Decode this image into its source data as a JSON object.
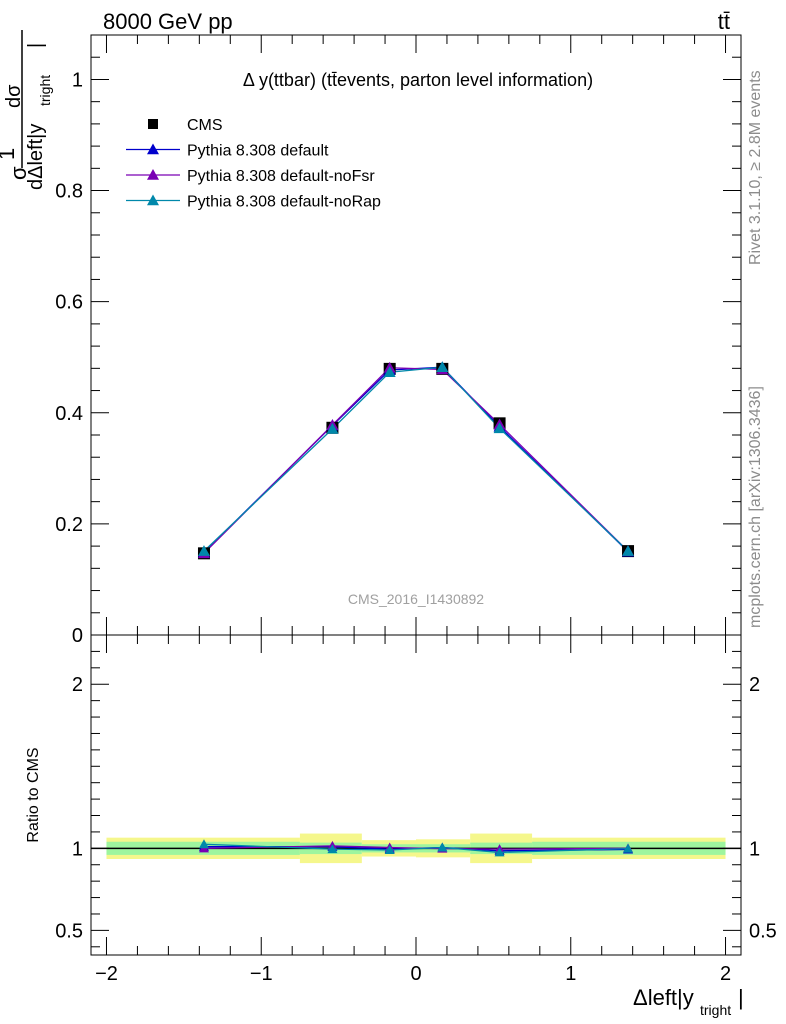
{
  "header": {
    "energy_label": "8000 GeV pp",
    "process_label": "tt̄",
    "analysis_id": "CMS_2016_I1430892",
    "rivet_label": "Rivet 3.1.10, ≥ 2.8M events",
    "mcplots_label": "mcplots.cern.ch [arXiv:1306.3436]"
  },
  "chart_data": [
    {
      "type": "scatter",
      "panel": "main",
      "title": "Δ y(ttbar) (tt̄events, parton level information)",
      "ylabel": "1/σ dσ/dΔleft|y_tright|",
      "xlim": [
        -2.1,
        2.1
      ],
      "ylim": [
        0,
        1.08
      ],
      "yticks": [
        0.2,
        0.4,
        0.6,
        0.8,
        1
      ],
      "grid": false,
      "legend_position": "top-left",
      "series": [
        {
          "name": "CMS",
          "color": "#000000",
          "marker": "square",
          "x": [
            -1.37,
            -0.54,
            -0.17,
            0.17,
            0.54,
            1.37
          ],
          "y": [
            0.147,
            0.373,
            0.479,
            0.479,
            0.381,
            0.151
          ]
        },
        {
          "name": "Pythia 8.308 default",
          "color": "#0000cc",
          "marker": "triangle",
          "x": [
            -1.37,
            -0.54,
            -0.17,
            0.17,
            0.54,
            1.37
          ],
          "y": [
            0.149,
            0.377,
            0.477,
            0.482,
            0.375,
            0.15
          ]
        },
        {
          "name": "Pythia 8.308 default-noFsr",
          "color": "#7a00b4",
          "marker": "triangle",
          "x": [
            -1.37,
            -0.54,
            -0.17,
            0.17,
            0.54,
            1.37
          ],
          "y": [
            0.147,
            0.378,
            0.481,
            0.478,
            0.379,
            0.151
          ]
        },
        {
          "name": "Pythia 8.308 default-noRap",
          "color": "#0088aa",
          "marker": "triangle",
          "x": [
            -1.37,
            -0.54,
            -0.17,
            0.17,
            0.54,
            1.37
          ],
          "y": [
            0.151,
            0.371,
            0.473,
            0.482,
            0.372,
            0.151
          ]
        }
      ]
    },
    {
      "type": "line",
      "panel": "ratio",
      "xlabel": "Δleft|y_tright|",
      "ylabel": "Ratio to CMS",
      "xlim": [
        -2.1,
        2.1
      ],
      "ylim": [
        0.35,
        2.3
      ],
      "xticks": [
        -2,
        -1,
        0,
        1,
        2
      ],
      "xtick_labels": [
        "−2",
        "−1",
        "0",
        "1",
        "2"
      ],
      "yticks": [
        0.5,
        1,
        2
      ],
      "grid": false,
      "bins": [
        -2,
        -0.75,
        -0.35,
        0,
        0.35,
        0.75,
        2
      ],
      "band_inner": [
        0.04,
        0.035,
        0.025,
        0.025,
        0.035,
        0.04
      ],
      "band_outer": [
        0.065,
        0.09,
        0.05,
        0.055,
        0.09,
        0.065
      ],
      "series": [
        {
          "name": "Pythia 8.308 default",
          "color": "#0000cc",
          "x": [
            -1.37,
            -0.54,
            -0.17,
            0.17,
            0.54,
            1.37
          ],
          "y": [
            1.01,
            1.01,
            0.995,
            1.005,
            0.985,
            0.993
          ]
        },
        {
          "name": "Pythia 8.308 default-noFsr",
          "color": "#7a00b4",
          "x": [
            -1.37,
            -0.54,
            -0.17,
            0.17,
            0.54,
            1.37
          ],
          "y": [
            1.0,
            1.015,
            1.005,
            0.998,
            0.995,
            1.0
          ]
        },
        {
          "name": "Pythia 8.308 default-noRap",
          "color": "#0088aa",
          "x": [
            -1.37,
            -0.54,
            -0.17,
            0.17,
            0.54,
            1.37
          ],
          "y": [
            1.025,
            0.995,
            0.99,
            1.005,
            0.975,
            0.998
          ]
        }
      ]
    }
  ]
}
